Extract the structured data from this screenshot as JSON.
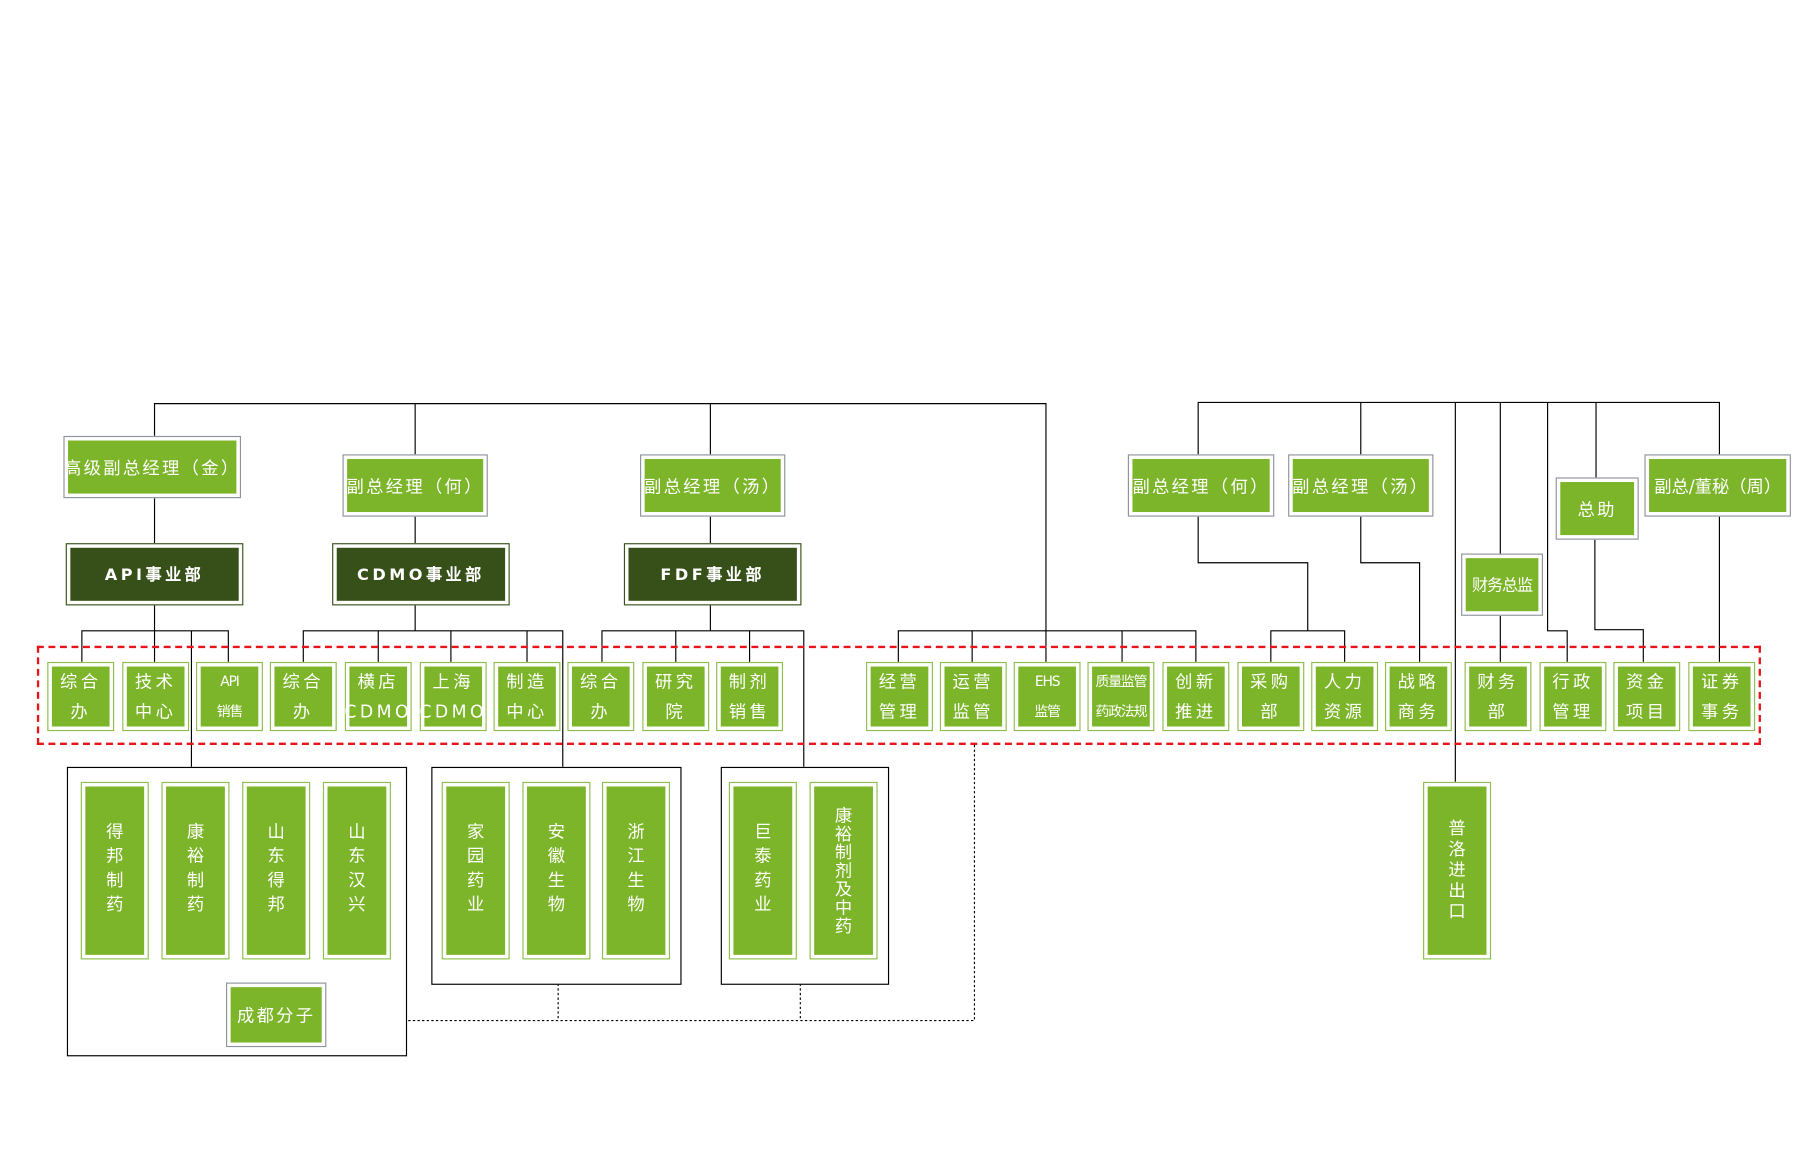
{
  "colors": {
    "box_green": "#7cb52a",
    "division_dark": "#374f19",
    "highlight_dash": "#e8141a"
  },
  "managers": [
    {
      "label": "高级副总经理（金）"
    },
    {
      "label": "副总经理（何）"
    },
    {
      "label": "副总经理（汤）"
    },
    {
      "label": "副总经理（何）"
    },
    {
      "label": "副总经理（汤）"
    },
    {
      "label": "总助"
    },
    {
      "label": "副总/董秘（周）"
    },
    {
      "label": "财务总监"
    }
  ],
  "divisions": [
    {
      "label": "API事业部"
    },
    {
      "label": "CDMO事业部"
    },
    {
      "label": "FDF事业部"
    }
  ],
  "departments": [
    {
      "lines": [
        "综合",
        "办"
      ]
    },
    {
      "lines": [
        "技术",
        "中心"
      ]
    },
    {
      "lines": [
        "API",
        "销售"
      ]
    },
    {
      "lines": [
        "综合",
        "办"
      ]
    },
    {
      "lines": [
        "横店",
        "CDMO"
      ]
    },
    {
      "lines": [
        "上海",
        "CDMO"
      ]
    },
    {
      "lines": [
        "制造",
        "中心"
      ]
    },
    {
      "lines": [
        "综合",
        "办"
      ]
    },
    {
      "lines": [
        "研究",
        "院"
      ]
    },
    {
      "lines": [
        "制剂",
        "销售"
      ]
    },
    {
      "lines": [
        "经营",
        "管理"
      ]
    },
    {
      "lines": [
        "运营",
        "监管"
      ]
    },
    {
      "lines": [
        "EHS",
        "监管"
      ]
    },
    {
      "lines": [
        "质量监管",
        "药政法规"
      ]
    },
    {
      "lines": [
        "创新",
        "推进"
      ]
    },
    {
      "lines": [
        "采购",
        "部"
      ]
    },
    {
      "lines": [
        "人力",
        "资源"
      ]
    },
    {
      "lines": [
        "战略",
        "商务"
      ]
    },
    {
      "lines": [
        "财务",
        "部"
      ]
    },
    {
      "lines": [
        "行政",
        "管理"
      ]
    },
    {
      "lines": [
        "资金",
        "项目"
      ]
    },
    {
      "lines": [
        "证券",
        "事务"
      ]
    }
  ],
  "subsidiaries": [
    {
      "label": "得邦制药"
    },
    {
      "label": "康裕制药"
    },
    {
      "label": "山东得邦"
    },
    {
      "label": "山东汉兴"
    },
    {
      "label": "成都分子"
    },
    {
      "label": "家园药业"
    },
    {
      "label": "安徽生物"
    },
    {
      "label": "浙江生物"
    },
    {
      "label": "巨泰药业"
    },
    {
      "label": "康裕制剂及中药"
    },
    {
      "label": "普洛进出口"
    }
  ]
}
